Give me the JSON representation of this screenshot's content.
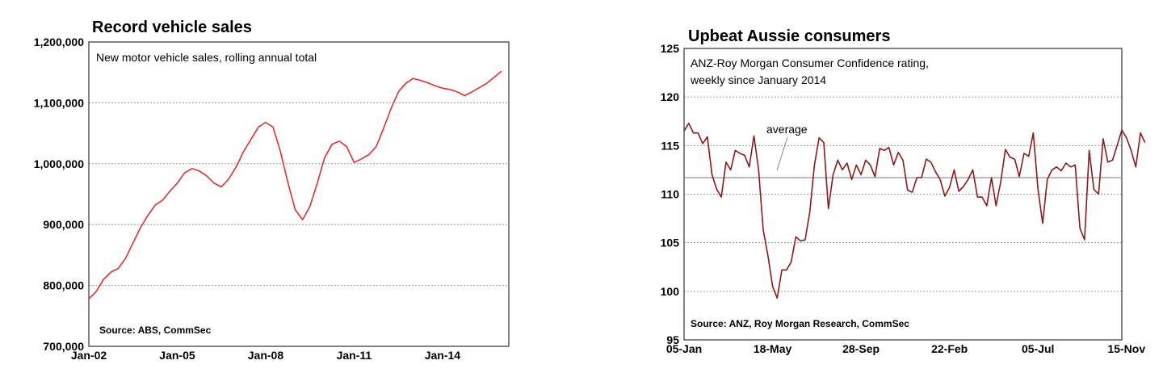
{
  "colors": {
    "left_series": "#e03030",
    "right_series": "#8b1a1a",
    "average_line": "#888888"
  },
  "chart_data": [
    {
      "type": "line",
      "title": "Record vehicle sales",
      "subtitle": "New motor vehicle sales, rolling annual total",
      "source": "Source:  ABS, CommSec",
      "ylim": [
        700000,
        1200000
      ],
      "yticks": [
        700000,
        800000,
        900000,
        1000000,
        1100000,
        1200000
      ],
      "ytick_labels": [
        "700,000",
        "800,000",
        "900,000",
        "1,000,000",
        "1,100,000",
        "1,200,000"
      ],
      "xlim": [
        2002.0,
        2016.25
      ],
      "xticks": [
        2002,
        2005,
        2008,
        2011,
        2014
      ],
      "xtick_labels": [
        "Jan-02",
        "Jan-05",
        "Jan-08",
        "Jan-11",
        "Jan-14"
      ],
      "grid": true,
      "series": [
        {
          "x": [
            2002.0,
            2002.25,
            2002.5,
            2002.75,
            2003.0,
            2003.25,
            2003.5,
            2003.75,
            2004.0,
            2004.25,
            2004.5,
            2004.75,
            2005.0,
            2005.25,
            2005.5,
            2005.75,
            2006.0,
            2006.25,
            2006.5,
            2006.75,
            2007.0,
            2007.25,
            2007.5,
            2007.75,
            2008.0,
            2008.25,
            2008.5,
            2008.75,
            2009.0,
            2009.25,
            2009.5,
            2009.75,
            2010.0,
            2010.25,
            2010.5,
            2010.75,
            2011.0,
            2011.25,
            2011.5,
            2011.75,
            2012.0,
            2012.25,
            2012.5,
            2012.75,
            2013.0,
            2013.25,
            2013.5,
            2013.75,
            2014.0,
            2014.25,
            2014.5,
            2014.75,
            2015.0,
            2015.25,
            2015.5,
            2015.75,
            2016.0
          ],
          "values": [
            778000,
            790000,
            810000,
            822000,
            828000,
            845000,
            870000,
            895000,
            915000,
            932000,
            940000,
            955000,
            968000,
            985000,
            992000,
            988000,
            980000,
            968000,
            962000,
            975000,
            995000,
            1020000,
            1040000,
            1060000,
            1068000,
            1060000,
            1020000,
            970000,
            925000,
            908000,
            930000,
            968000,
            1010000,
            1032000,
            1037000,
            1028000,
            1002000,
            1008000,
            1015000,
            1028000,
            1058000,
            1090000,
            1118000,
            1132000,
            1140000,
            1137000,
            1133000,
            1128000,
            1124000,
            1122000,
            1118000,
            1112000,
            1118000,
            1125000,
            1132000,
            1142000,
            1152000
          ]
        }
      ]
    },
    {
      "type": "line",
      "title": "Upbeat Aussie consumers",
      "subtitle_lines": [
        "ANZ-Roy Morgan Consumer Confidence rating,",
        "weekly since January 2014"
      ],
      "source": "Source: ANZ, Roy Morgan Research, CommSec",
      "annotation": "average",
      "average": 111.7,
      "ylim": [
        95,
        125
      ],
      "yticks": [
        95,
        100,
        105,
        110,
        115,
        120,
        125
      ],
      "ytick_labels": [
        "95",
        "100",
        "105",
        "110",
        "115",
        "120",
        "125"
      ],
      "xlim": [
        0,
        94
      ],
      "xticks": [
        0,
        19,
        38,
        57,
        76,
        95
      ],
      "xtick_labels": [
        "05-Jan",
        "18-May",
        "28-Sep",
        "22-Feb",
        "05-Jul",
        "15-Nov"
      ],
      "grid": true,
      "series": [
        {
          "values": [
            116.5,
            117.3,
            116.3,
            116.3,
            115.2,
            115.9,
            112.0,
            110.5,
            109.7,
            113.3,
            112.5,
            114.5,
            114.2,
            114.0,
            112.8,
            116.0,
            112.5,
            106.3,
            103.7,
            100.5,
            99.3,
            102.2,
            102.2,
            103.0,
            105.6,
            105.2,
            105.3,
            108.2,
            113.0,
            115.8,
            115.3,
            108.5,
            112.0,
            113.5,
            112.5,
            113.2,
            111.5,
            113.0,
            112.0,
            113.5,
            113.0,
            111.8,
            114.7,
            114.5,
            114.8,
            113.0,
            114.3,
            113.5,
            110.4,
            110.2,
            111.7,
            111.7,
            113.6,
            113.3,
            112.3,
            111.5,
            109.8,
            110.7,
            112.5,
            110.3,
            110.8,
            111.5,
            112.5,
            109.7,
            109.7,
            108.8,
            111.7,
            108.8,
            111.3,
            114.6,
            113.8,
            113.6,
            111.8,
            114.2,
            113.9,
            116.3,
            110.5,
            107.0,
            111.5,
            112.5,
            112.8,
            112.4,
            113.2,
            112.8,
            113.0,
            106.5,
            105.3,
            114.5,
            110.5,
            110.0,
            115.7,
            113.3,
            113.5,
            115.0,
            116.6,
            115.8,
            114.5,
            112.8,
            116.3,
            115.3
          ]
        }
      ]
    }
  ]
}
